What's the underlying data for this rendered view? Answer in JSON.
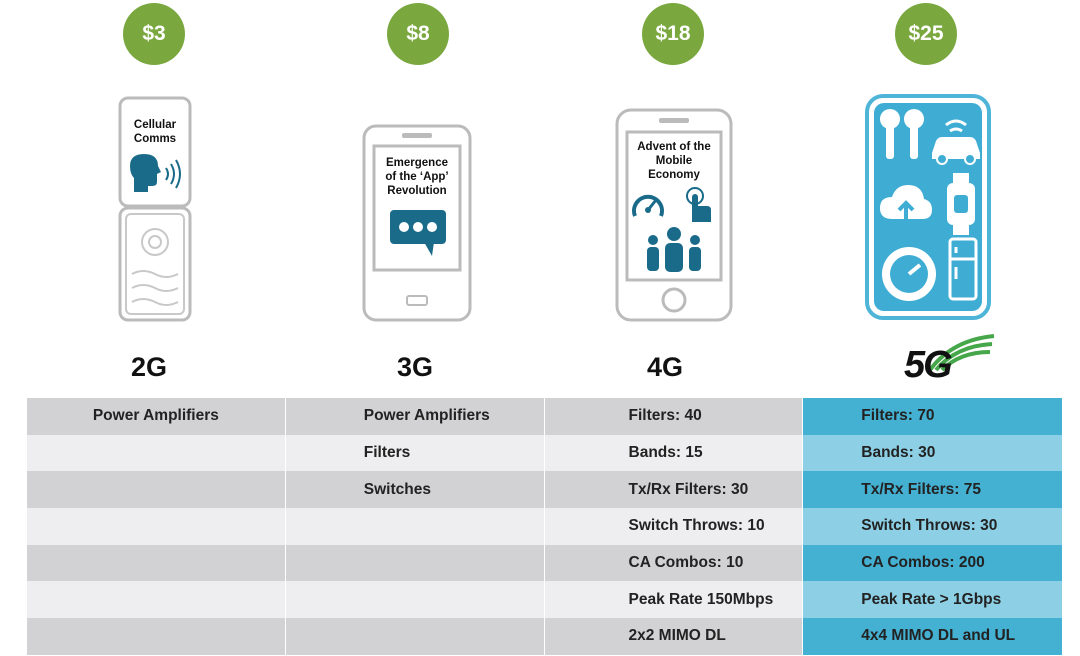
{
  "prices": [
    "$3",
    "$8",
    "$18",
    "$25"
  ],
  "generations": [
    "2G",
    "3G",
    "4G",
    "5G"
  ],
  "devices": {
    "flip_phone": {
      "text_line1": "Cellular",
      "text_line2": "Comms"
    },
    "smartphone_3g": {
      "text_line1": "Emergence",
      "text_line2": "of the ‘App’",
      "text_line3": "Revolution"
    },
    "smartphone_4g": {
      "text_line1": "Advent of the",
      "text_line2": "Mobile",
      "text_line3": "Economy"
    }
  },
  "table": {
    "rows": [
      [
        "Power Amplifiers",
        "Power Amplifiers",
        "Filters: 40",
        "Filters: 70"
      ],
      [
        "",
        "Filters",
        "Bands: 15",
        "Bands: 30"
      ],
      [
        "",
        "Switches",
        "Tx/Rx Filters: 30",
        "Tx/Rx Filters: 75"
      ],
      [
        "",
        "",
        "Switch Throws: 10",
        "Switch Throws: 30"
      ],
      [
        "",
        "",
        "CA Combos: 10",
        "CA Combos: 200"
      ],
      [
        "",
        "",
        "Peak Rate 150Mbps",
        "Peak Rate > 1Gbps"
      ],
      [
        "",
        "",
        "2x2 MIMO DL",
        "4x4 MIMO DL and UL"
      ]
    ]
  },
  "colors": {
    "price_badge": "#7aa83f",
    "highlight_dark": "#44b0d2",
    "highlight_light": "#8dd0e6",
    "gray_dark": "#d2d2d4",
    "gray_light": "#eeeef0"
  }
}
